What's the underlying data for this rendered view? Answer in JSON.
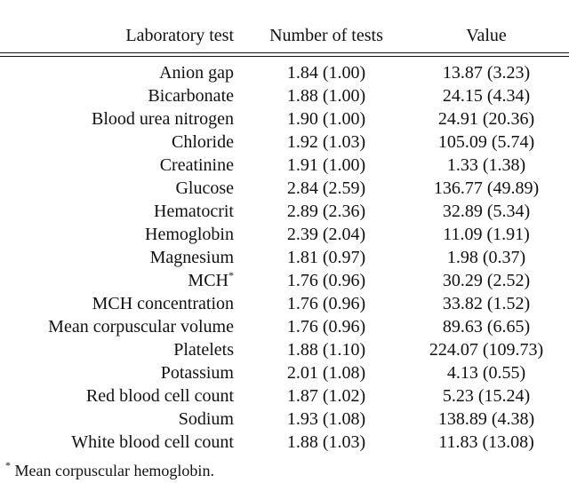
{
  "table": {
    "header": [
      "Laboratory test",
      "Number of tests",
      "Value"
    ],
    "rows": [
      [
        "Anion gap",
        "1.84 (1.00)",
        "13.87 (3.23)"
      ],
      [
        "Bicarbonate",
        "1.88 (1.00)",
        "24.15 (4.34)"
      ],
      [
        "Blood urea nitrogen",
        "1.90 (1.00)",
        "24.91 (20.36)"
      ],
      [
        "Chloride",
        "1.92 (1.03)",
        "105.09 (5.74)"
      ],
      [
        "Creatinine",
        "1.91 (1.00)",
        "1.33 (1.38)"
      ],
      [
        "Glucose",
        "2.84 (2.59)",
        "136.77 (49.89)"
      ],
      [
        "Hematocrit",
        "2.89 (2.36)",
        "32.89 (5.34)"
      ],
      [
        "Hemoglobin",
        "2.39 (2.04)",
        "11.09 (1.91)"
      ],
      [
        "Magnesium",
        "1.81 (0.97)",
        "1.98 (0.37)"
      ],
      [
        "MCH",
        "1.76 (0.96)",
        "30.29 (2.52)"
      ],
      [
        "MCH concentration",
        "1.76 (0.96)",
        "33.82 (1.52)"
      ],
      [
        "Mean corpuscular volume",
        "1.76 (0.96)",
        "89.63 (6.65)"
      ],
      [
        "Platelets",
        "1.88 (1.10)",
        "224.07 (109.73)"
      ],
      [
        "Potassium",
        "2.01 (1.08)",
        "4.13 (0.55)"
      ],
      [
        "Red blood cell count",
        "1.87 (1.02)",
        "5.23 (15.24)"
      ],
      [
        "Sodium",
        "1.93 (1.08)",
        "138.89 (4.38)"
      ],
      [
        "White blood cell count",
        "1.88 (1.03)",
        "11.83 (13.08)"
      ]
    ],
    "footnote": {
      "marker": "*",
      "text": "Mean corpuscular hemoglobin.",
      "row": 9
    }
  }
}
